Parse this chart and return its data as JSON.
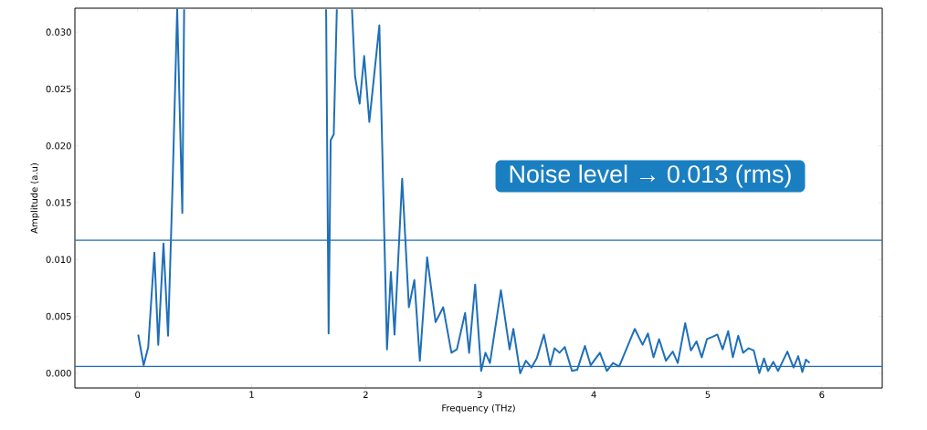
{
  "chart_data": {
    "type": "line",
    "xlabel": "Frequency (THz)",
    "ylabel": "Amplitude (a.u)",
    "annotations": [
      "Noise level → 0.013 (rms)"
    ],
    "x": [
      0.005,
      0.053,
      0.093,
      0.147,
      0.181,
      0.227,
      0.267,
      0.307,
      0.347,
      0.392,
      0.408,
      1.0,
      1.653,
      1.675,
      1.693,
      1.72,
      1.747,
      1.8,
      1.88,
      1.907,
      1.947,
      1.987,
      2.032,
      2.12,
      2.187,
      2.221,
      2.253,
      2.32,
      2.379,
      2.427,
      2.475,
      2.539,
      2.613,
      2.68,
      2.752,
      2.8,
      2.872,
      2.907,
      2.96,
      3.013,
      3.05,
      3.09,
      3.186,
      3.262,
      3.295,
      3.355,
      3.405,
      3.454,
      3.5,
      3.563,
      3.618,
      3.656,
      3.7,
      3.746,
      3.809,
      3.855,
      3.923,
      3.973,
      4.054,
      4.115,
      4.169,
      4.223,
      4.36,
      4.428,
      4.475,
      4.524,
      4.573,
      4.633,
      4.693,
      4.737,
      4.802,
      4.852,
      4.901,
      4.947,
      4.993,
      5.043,
      5.084,
      5.13,
      5.179,
      5.22,
      5.267,
      5.31,
      5.357,
      5.403,
      5.452,
      5.493,
      5.529,
      5.575,
      5.616,
      5.698,
      5.752,
      5.793,
      5.829,
      5.861,
      5.893
    ],
    "series": [
      {
        "color": "#1f6fb8",
        "values": [
          0.0034,
          0.0007,
          0.0023,
          0.0106,
          0.0025,
          0.0114,
          0.0033,
          0.0167,
          0.032,
          0.0141,
          0.032,
          null,
          0.032,
          0.0035,
          0.0205,
          0.021,
          0.032,
          null,
          0.032,
          0.0261,
          0.0237,
          0.0279,
          0.0221,
          0.0306,
          0.0021,
          0.0089,
          0.0034,
          0.0171,
          0.0058,
          0.0082,
          0.0011,
          0.0102,
          0.0045,
          0.0058,
          0.0018,
          0.0021,
          0.0053,
          0.0018,
          0.0078,
          0.0002,
          0.0018,
          0.0009,
          0.0073,
          0.0021,
          0.0039,
          0.0,
          0.0011,
          0.0005,
          0.0013,
          0.0034,
          0.0007,
          0.0022,
          0.0018,
          0.0023,
          0.0002,
          0.0003,
          0.0024,
          0.0007,
          0.0018,
          0.0002,
          0.0009,
          0.0006,
          0.0039,
          0.0025,
          0.0035,
          0.0014,
          0.003,
          0.0011,
          0.0019,
          0.0009,
          0.0044,
          0.002,
          0.0028,
          0.0014,
          0.003,
          0.0032,
          0.0034,
          0.0021,
          0.0037,
          0.0014,
          0.0033,
          0.0018,
          0.0022,
          0.002,
          0.0,
          0.0013,
          0.0002,
          0.001,
          0.0002,
          0.0019,
          0.0005,
          0.0015,
          0.0001,
          0.0012,
          0.0009
        ]
      }
    ],
    "xlim": [
      -0.55,
      6.53
    ],
    "ylim": [
      -0.0013,
      0.0321
    ],
    "xticks": [
      0,
      1,
      2,
      3,
      4,
      5,
      6
    ],
    "yticks": [
      {
        "value": 0,
        "label": "0.000"
      },
      {
        "value": 0.005,
        "label": "0.005"
      },
      {
        "value": 0.01,
        "label": "0.010"
      },
      {
        "value": 0.015,
        "label": "0.015"
      },
      {
        "value": 0.02,
        "label": "0.020"
      },
      {
        "value": 0.025,
        "label": "0.025"
      },
      {
        "value": 0.03,
        "label": "0.030"
      }
    ],
    "ref_lines": [
      {
        "axis": "y",
        "value": 0.0117,
        "color": "#1f6fb8"
      },
      {
        "axis": "y",
        "value": 0.0006,
        "color": "#1f6fb8"
      }
    ],
    "line_style": "solid"
  }
}
